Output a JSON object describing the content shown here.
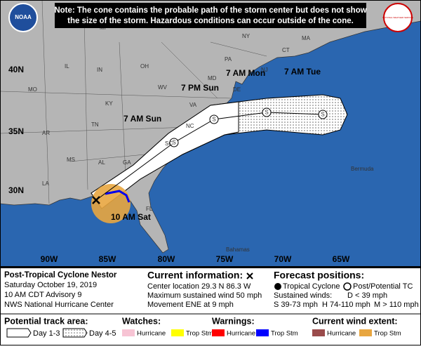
{
  "note": [
    "Note: The cone contains the probable path of the storm center but does not show",
    "the size of the storm. Hazardous conditions can occur outside of the cone."
  ],
  "logos": {
    "noaa": "NOAA",
    "nws": "NATIONAL WEATHER SERVICE"
  },
  "map": {
    "lat_labels": [
      "40N",
      "35N",
      "30N"
    ],
    "lon_labels": [
      "90W",
      "85W",
      "80W",
      "75W",
      "70W",
      "65W"
    ],
    "region_labels": [
      "MI",
      "NY",
      "MA",
      "CT",
      "PA",
      "NJ",
      "IL",
      "IN",
      "OH",
      "MD",
      "DE",
      "WV",
      "MO",
      "KY",
      "VA",
      "TN",
      "NC",
      "AR",
      "SC",
      "MS",
      "AL",
      "GA",
      "LA",
      "FL",
      "Bermuda",
      "Bahamas"
    ],
    "forecast_labels": [
      "10 AM Sat",
      "7 AM Sun",
      "7 PM Sun",
      "7 AM Mon",
      "7 AM Tue"
    ],
    "point_symbols": [
      "S",
      "S",
      "S",
      "S"
    ]
  },
  "info": {
    "storm": "Post-Tropical Cyclone Nestor",
    "date": "Saturday October 19, 2019",
    "advisory": "10 AM CDT Advisory 9",
    "center": "NWS National Hurricane Center",
    "current_title": "Current information:",
    "location": "Center location 29.3 N 86.3 W",
    "wind": "Maximum sustained wind 50 mph",
    "movement": "Movement ENE at 9 mph",
    "forecast_title": "Forecast positions:",
    "tropical": "Tropical Cyclone",
    "post": "Post/Potential TC",
    "sustained": "Sustained winds:",
    "d": "D < 39 mph",
    "s": "S 39-73 mph",
    "h": "H 74-110 mph",
    "m": "M > 110 mph"
  },
  "legend": {
    "track_title": "Potential track area:",
    "day13": "Day 1-3",
    "day45": "Day 4-5",
    "watches_title": "Watches:",
    "watch_hurricane": "Hurricane",
    "watch_trop": "Trop Stm",
    "warnings_title": "Warnings:",
    "warn_hurricane": "Hurricane",
    "warn_trop": "Trop Stm",
    "wind_title": "Current wind extent:",
    "wind_hurricane": "Hurricane",
    "wind_trop": "Trop Stm"
  }
}
